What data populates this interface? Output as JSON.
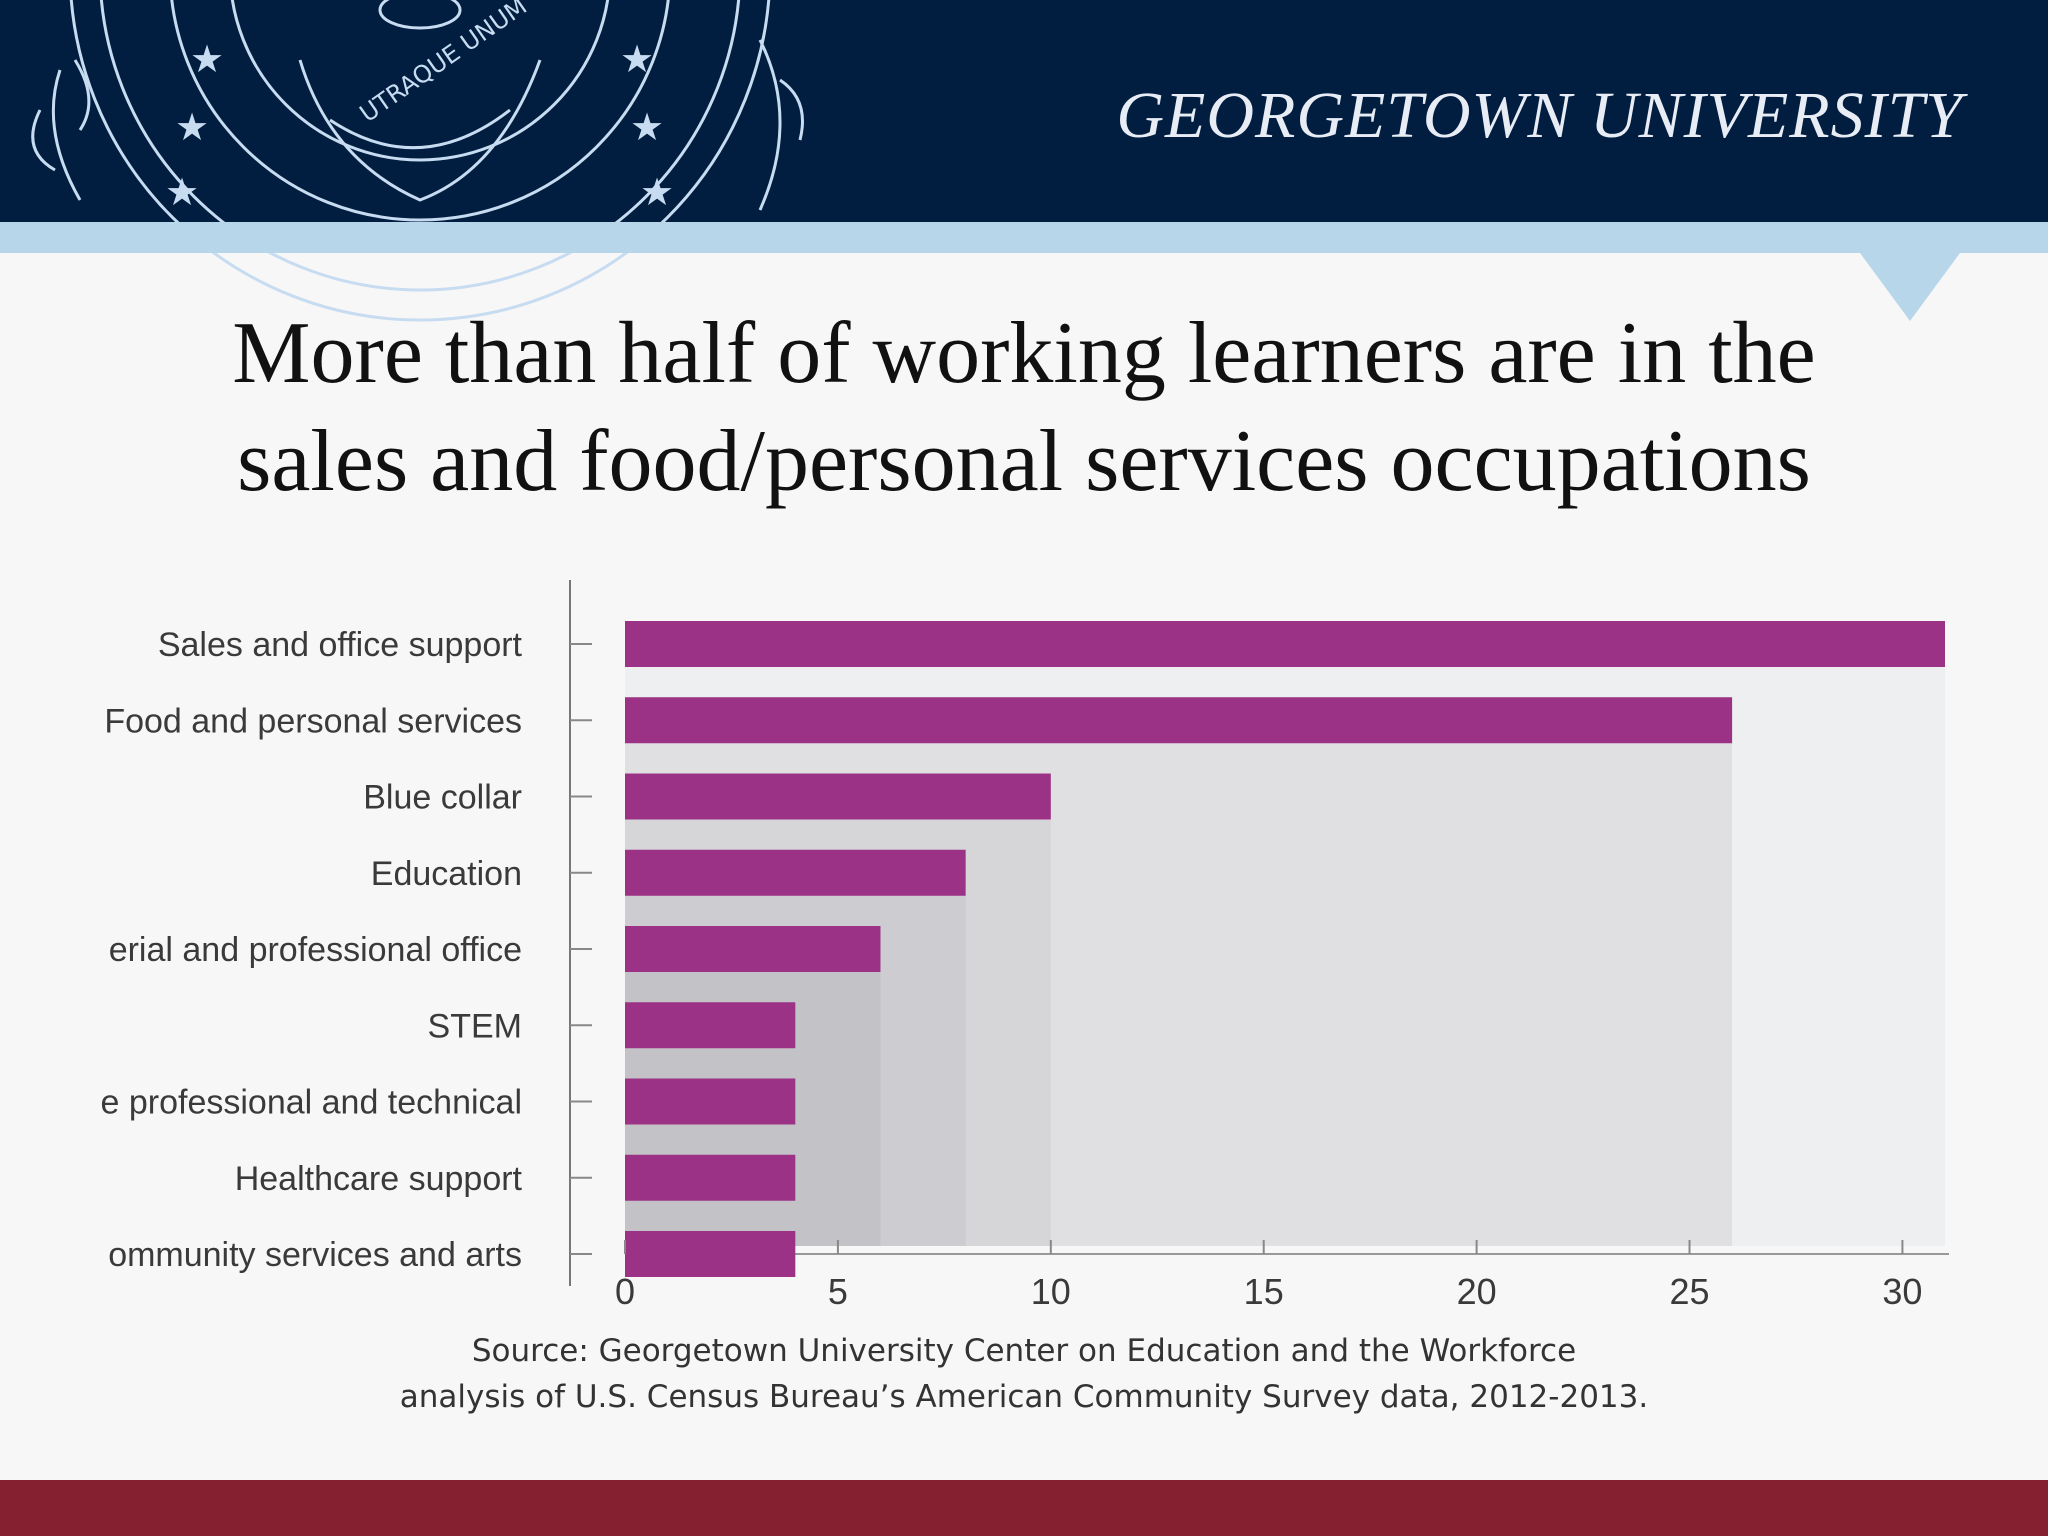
{
  "header": {
    "university_name": "GEORGETOWN UNIVERSITY",
    "seal_text": "UTRAQUE UNUM",
    "colors": {
      "navy": "#011e41",
      "band": "#b8d6ea",
      "footer": "#84202f"
    }
  },
  "slide": {
    "title_line1": "More than half of working learners are in the",
    "title_line2": "sales and food/personal services occupations",
    "source_line1": "Source: Georgetown University Center on Education and the Workforce",
    "source_line2": "analysis of U.S. Census Bureau’s American Community Survey data, 2012-2013."
  },
  "chart_data": {
    "type": "bar",
    "orientation": "horizontal",
    "categories": [
      "Sales and office support",
      "Food and personal services",
      "Blue collar",
      "Education",
      "erial and professional office",
      "STEM",
      "e professional and technical",
      "Healthcare support",
      "ommunity services and arts"
    ],
    "values": [
      31,
      26,
      10,
      8,
      6,
      4,
      4,
      4,
      4
    ],
    "xlim": [
      0,
      31
    ],
    "xticks": [
      0,
      5,
      10,
      15,
      20,
      25,
      30
    ],
    "bar_color": "#9b3285",
    "grid": false
  }
}
